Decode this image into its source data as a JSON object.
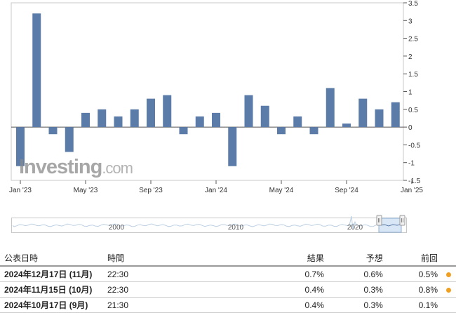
{
  "chart_data": {
    "type": "bar",
    "months": [
      "2023-01",
      "2023-02",
      "2023-03",
      "2023-04",
      "2023-05",
      "2023-06",
      "2023-07",
      "2023-08",
      "2023-09",
      "2023-10",
      "2023-11",
      "2023-12",
      "2024-01",
      "2024-02",
      "2024-03",
      "2024-04",
      "2024-05",
      "2024-06",
      "2024-07",
      "2024-08",
      "2024-09",
      "2024-10",
      "2024-11",
      "2024-12"
    ],
    "values": [
      -1.1,
      3.2,
      -0.2,
      -0.7,
      0.4,
      0.5,
      0.3,
      0.5,
      0.8,
      0.9,
      -0.2,
      0.3,
      0.4,
      -1.1,
      0.9,
      0.6,
      -0.2,
      0.3,
      -0.2,
      1.1,
      0.1,
      0.8,
      0.5,
      0.7
    ],
    "ylim": [
      -1.5,
      3.5
    ],
    "y_ticks": [
      "3.5",
      "3",
      "2.5",
      "2",
      "1.5",
      "1",
      "0.5",
      "0",
      "-0.5",
      "-1",
      "-1.5"
    ],
    "x_ticks": [
      "Jan '23",
      "May '23",
      "Sep '23",
      "Jan '24",
      "May '24",
      "Sep '24",
      "Jan '25"
    ],
    "bar_color": "#5b7ca8"
  },
  "watermark": {
    "brand": "Investing",
    "suffix": ".com"
  },
  "navigator": {
    "year_labels": [
      "2000",
      "2010",
      "2020"
    ]
  },
  "table": {
    "headers": {
      "date": "公表日時",
      "time": "時間",
      "actual": "結果",
      "forecast": "予想",
      "previous": "前回"
    },
    "rows": [
      {
        "date": "2024年12月17日 (11月)",
        "time": "22:30",
        "actual": "0.7%",
        "forecast": "0.6%",
        "previous": "0.5%"
      },
      {
        "date": "2024年11月15日 (10月)",
        "time": "22:30",
        "actual": "0.4%",
        "forecast": "0.3%",
        "previous": "0.8%"
      },
      {
        "date": "2024年10月17日 (9月)",
        "time": "21:30",
        "actual": "0.4%",
        "forecast": "0.3%",
        "previous": "0.1%"
      }
    ],
    "colors": {
      "red": "#e00000",
      "dot": "#f0a020"
    }
  }
}
